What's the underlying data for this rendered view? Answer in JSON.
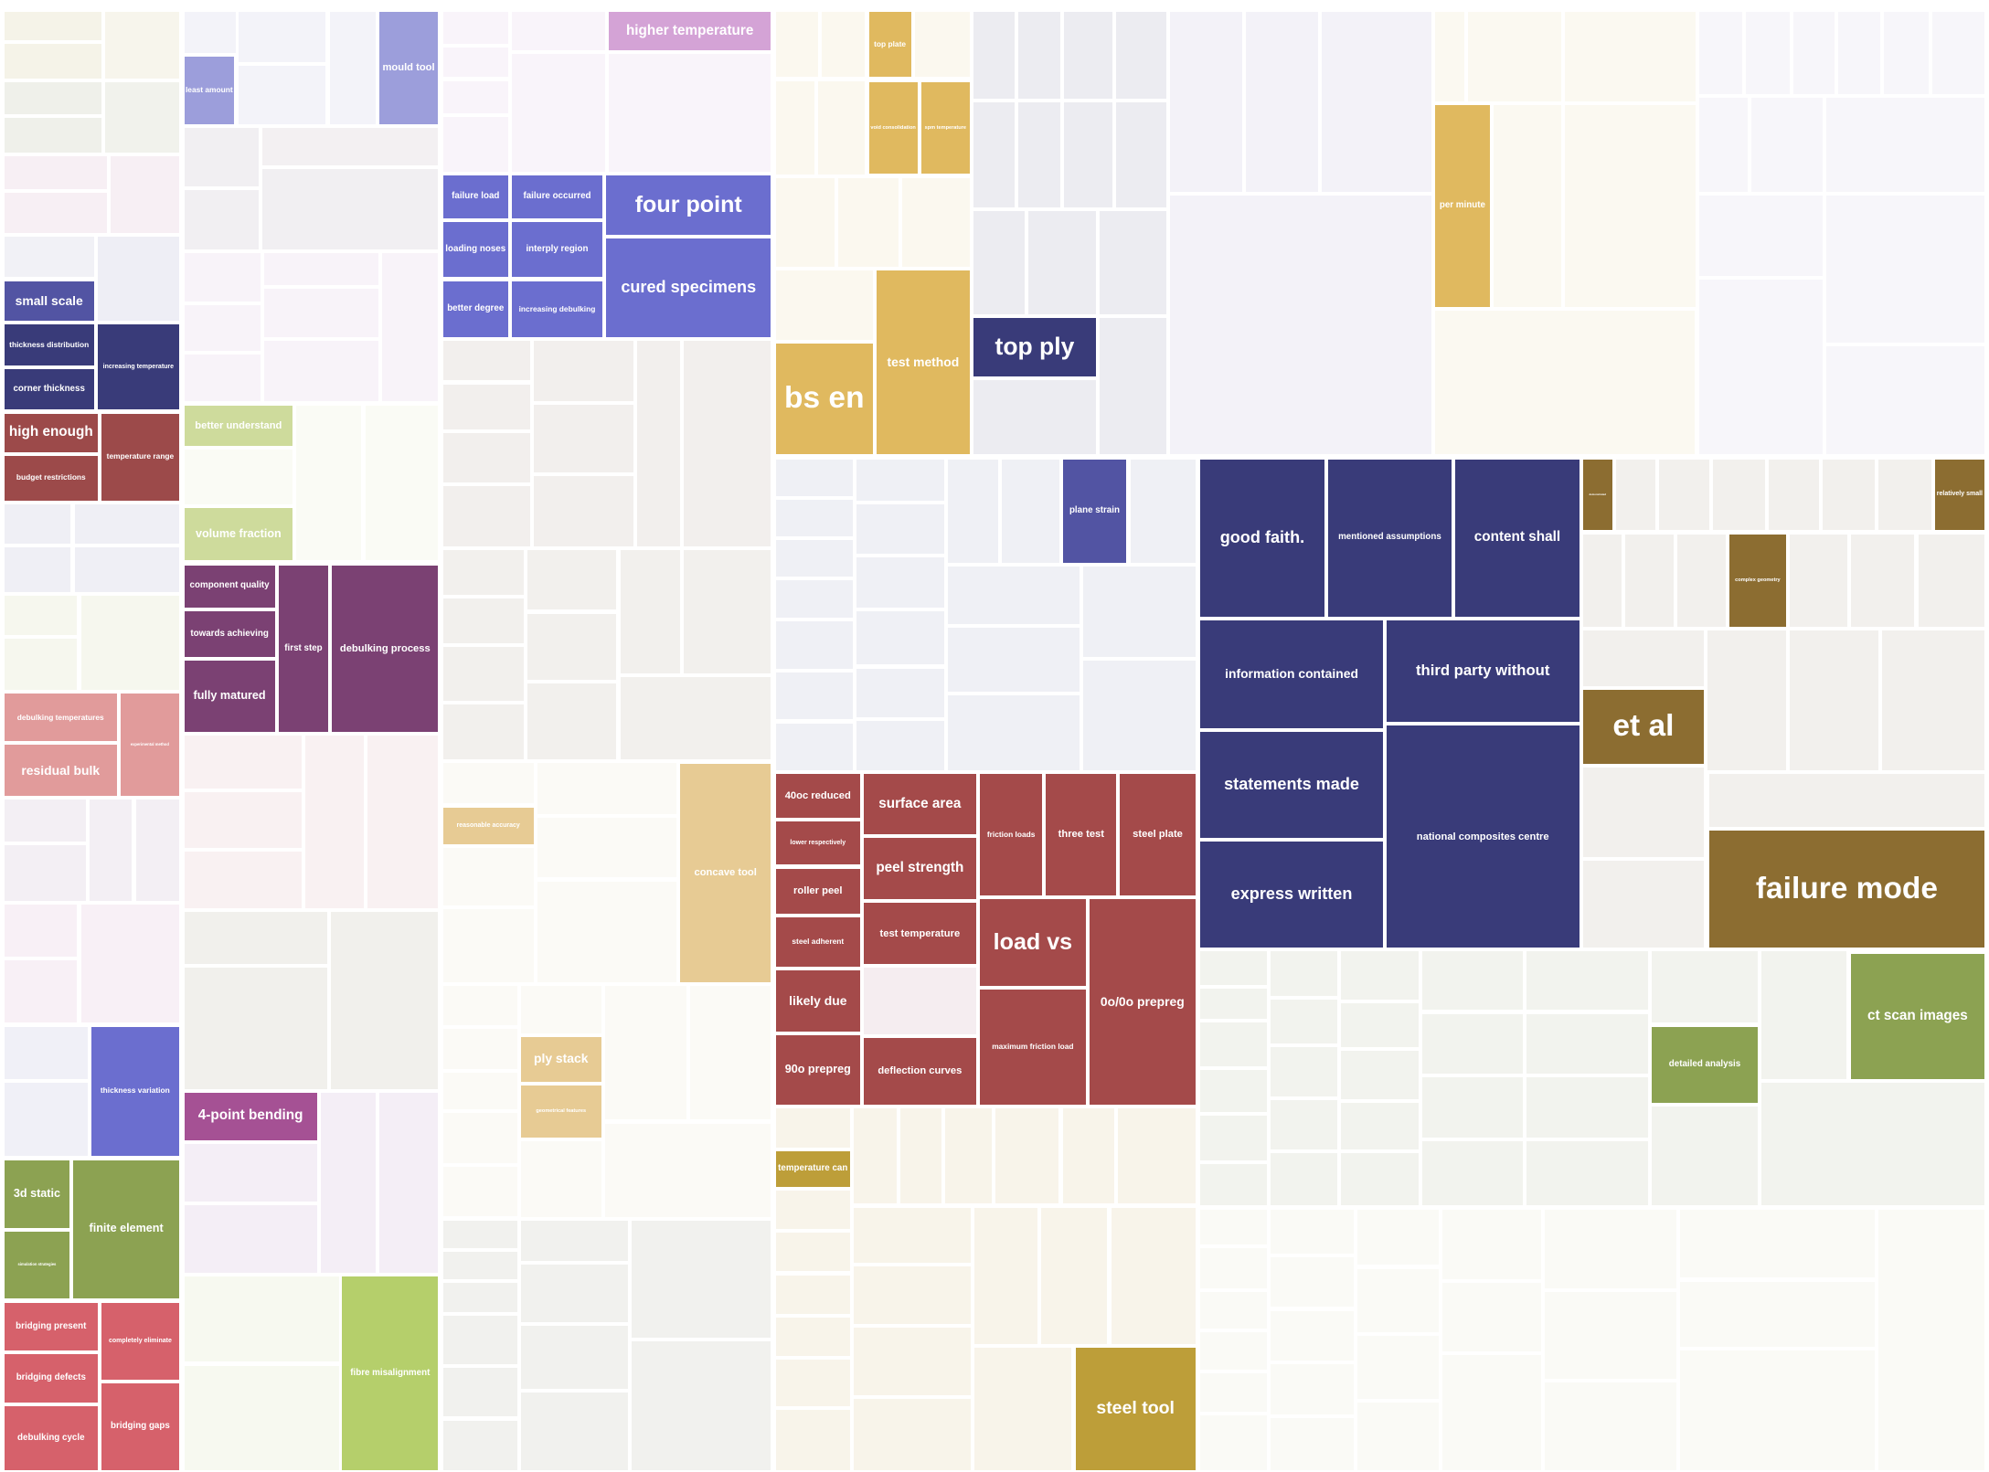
{
  "chart_data": {
    "type": "treemap",
    "title": "",
    "cells": [
      {
        "label": "higher temperature",
        "value": 5,
        "color": "#d4a3d6"
      },
      {
        "label": "mould tool",
        "value": 6,
        "color": "#9c9edb"
      },
      {
        "label": "least amount",
        "value": 3,
        "color": "#9c9edb"
      },
      {
        "label": "top plate",
        "value": 2,
        "color": "#e0b95f"
      },
      {
        "label": "void consolidation",
        "value": 2,
        "color": "#e0b95f"
      },
      {
        "label": "spm temperature",
        "value": 2,
        "color": "#e0b95f"
      },
      {
        "label": "failure load",
        "value": 2,
        "color": "#6b6ecf"
      },
      {
        "label": "failure occurred",
        "value": 2,
        "color": "#6b6ecf"
      },
      {
        "label": "four point",
        "value": 8,
        "color": "#6b6ecf"
      },
      {
        "label": "loading noses",
        "value": 2,
        "color": "#6b6ecf"
      },
      {
        "label": "interply region",
        "value": 2,
        "color": "#6b6ecf"
      },
      {
        "label": "better degree",
        "value": 2,
        "color": "#6b6ecf"
      },
      {
        "label": "increasing debulking",
        "value": 2,
        "color": "#6b6ecf"
      },
      {
        "label": "cured specimens",
        "value": 9,
        "color": "#6b6ecf"
      },
      {
        "label": "small scale",
        "value": 3,
        "color": "#5254a3"
      },
      {
        "label": "thickness distribution",
        "value": 2,
        "color": "#393b79"
      },
      {
        "label": "corner thickness",
        "value": 2,
        "color": "#393b79"
      },
      {
        "label": "increasing temperature",
        "value": 3,
        "color": "#393b79"
      },
      {
        "label": "high enough",
        "value": 3,
        "color": "#9c4a4a"
      },
      {
        "label": "budget restrictions",
        "value": 2,
        "color": "#9c4a4a"
      },
      {
        "label": "temperature range",
        "value": 3,
        "color": "#9c4a4a"
      },
      {
        "label": "better understand",
        "value": 3,
        "color": "#cedb9c"
      },
      {
        "label": "volume fraction",
        "value": 3,
        "color": "#cedb9c"
      },
      {
        "label": "component quality",
        "value": 2,
        "color": "#7b4173"
      },
      {
        "label": "towards achieving",
        "value": 2,
        "color": "#7b4173"
      },
      {
        "label": "fully matured",
        "value": 3,
        "color": "#7b4173"
      },
      {
        "label": "first step",
        "value": 3,
        "color": "#7b4173"
      },
      {
        "label": "debulking process",
        "value": 6,
        "color": "#7b4173"
      },
      {
        "label": "debulking temperatures",
        "value": 2,
        "color": "#e19b9b"
      },
      {
        "label": "residual bulk",
        "value": 3,
        "color": "#e19b9b"
      },
      {
        "label": "experimental method",
        "value": 2,
        "color": "#e19b9b"
      },
      {
        "label": "thickness variation",
        "value": 5,
        "color": "#6b6ecf"
      },
      {
        "label": "4-point bending",
        "value": 3,
        "color": "#a55194"
      },
      {
        "label": "3d static",
        "value": 2,
        "color": "#8ca252"
      },
      {
        "label": "simulation strategies",
        "value": 2,
        "color": "#8ca252"
      },
      {
        "label": "finite element",
        "value": 5,
        "color": "#8ca252"
      },
      {
        "label": "bridging present",
        "value": 2,
        "color": "#d6616b"
      },
      {
        "label": "completely eliminate",
        "value": 2,
        "color": "#d6616b"
      },
      {
        "label": "bridging defects",
        "value": 2,
        "color": "#d6616b"
      },
      {
        "label": "debulking cycle",
        "value": 2,
        "color": "#d6616b"
      },
      {
        "label": "bridging gaps",
        "value": 3,
        "color": "#d6616b"
      },
      {
        "label": "fibre misalignment",
        "value": 5,
        "color": "#b5cf6b"
      },
      {
        "label": "reasonable accuracy",
        "value": 2,
        "color": "#e7cb94"
      },
      {
        "label": "concave tool",
        "value": 5,
        "color": "#e7cb94"
      },
      {
        "label": "ply stack",
        "value": 2,
        "color": "#e7cb94"
      },
      {
        "label": "geometrical features",
        "value": 2,
        "color": "#e7cb94"
      },
      {
        "label": "bs en",
        "value": 7,
        "color": "#e0b95f"
      },
      {
        "label": "test method",
        "value": 8,
        "color": "#e0b95f"
      },
      {
        "label": "top ply",
        "value": 5,
        "color": "#393b79"
      },
      {
        "label": "plane strain",
        "value": 3,
        "color": "#5254a3"
      },
      {
        "label": "per minute",
        "value": 5,
        "color": "#e0b95f"
      },
      {
        "label": "good faith.",
        "value": 6,
        "color": "#393b79"
      },
      {
        "label": "mentioned assumptions",
        "value": 6,
        "color": "#393b79"
      },
      {
        "label": "content shall",
        "value": 6,
        "color": "#393b79"
      },
      {
        "label": "information contained",
        "value": 6,
        "color": "#393b79"
      },
      {
        "label": "third party without",
        "value": 6,
        "color": "#393b79"
      },
      {
        "label": "statements made",
        "value": 6,
        "color": "#393b79"
      },
      {
        "label": "national composites centre",
        "value": 10,
        "color": "#393b79"
      },
      {
        "label": "express written",
        "value": 6,
        "color": "#393b79"
      },
      {
        "label": "demonstrated",
        "value": 2,
        "color": "#8c6d31"
      },
      {
        "label": "relatively small",
        "value": 2,
        "color": "#8c6d31"
      },
      {
        "label": "complex geometry",
        "value": 3,
        "color": "#8c6d31"
      },
      {
        "label": "et al",
        "value": 5,
        "color": "#8c6d31"
      },
      {
        "label": "failure mode",
        "value": 12,
        "color": "#8c6d31"
      },
      {
        "label": "40oc reduced",
        "value": 2,
        "color": "#a44a4a"
      },
      {
        "label": "lower respectively",
        "value": 2,
        "color": "#a44a4a"
      },
      {
        "label": "roller peel",
        "value": 2,
        "color": "#a44a4a"
      },
      {
        "label": "steel adherent",
        "value": 2,
        "color": "#a44a4a"
      },
      {
        "label": "likely due",
        "value": 2,
        "color": "#a44a4a"
      },
      {
        "label": "90o prepreg",
        "value": 3,
        "color": "#a44a4a"
      },
      {
        "label": "surface area",
        "value": 3,
        "color": "#a44a4a"
      },
      {
        "label": "peel strength",
        "value": 3,
        "color": "#a44a4a"
      },
      {
        "label": "test temperature",
        "value": 3,
        "color": "#a44a4a"
      },
      {
        "label": "deflection curves",
        "value": 3,
        "color": "#a44a4a"
      },
      {
        "label": "friction loads",
        "value": 3,
        "color": "#a44a4a"
      },
      {
        "label": "three test",
        "value": 3,
        "color": "#a44a4a"
      },
      {
        "label": "steel plate",
        "value": 3,
        "color": "#a44a4a"
      },
      {
        "label": "load vs",
        "value": 5,
        "color": "#a44a4a"
      },
      {
        "label": "maximum friction load",
        "value": 4,
        "color": "#a44a4a"
      },
      {
        "label": "0o/0o prepreg",
        "value": 8,
        "color": "#a44a4a"
      },
      {
        "label": "temperature can",
        "value": 2,
        "color": "#bd9e39"
      },
      {
        "label": "steel tool",
        "value": 5,
        "color": "#bd9e39"
      },
      {
        "label": "detailed analysis",
        "value": 3,
        "color": "#8ca252"
      },
      {
        "label": "ct scan images",
        "value": 5,
        "color": "#8ca252"
      }
    ]
  }
}
